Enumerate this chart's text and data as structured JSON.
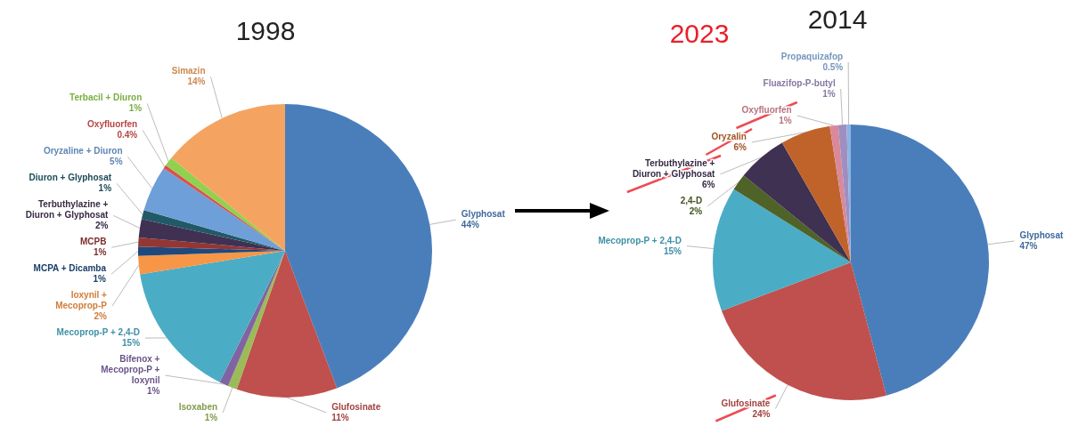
{
  "chart_data": [
    {
      "type": "pie",
      "title": "1998",
      "categories": [
        "Glyphosat",
        "Glufosinate",
        "Isoxaben",
        "Bifenox + Mecoprop-P + Ioxynil",
        "Mecoprop-P + 2,4-D",
        "Ioxynil + Mecoprop-P",
        "MCPA + Dicamba",
        "MCPB",
        "Terbuthylazine + Diuron + Glyphosat",
        "Diuron + Glyphosat",
        "Oryzaline + Diuron",
        "Oxyfluorfen",
        "Terbacil + Diuron",
        "Simazin"
      ],
      "values": [
        44,
        11,
        1,
        1,
        15,
        2,
        1,
        1,
        2,
        1,
        5,
        0.4,
        1,
        14
      ],
      "value_labels": [
        "44%",
        "11%",
        "1%",
        "1%",
        "15%",
        "2%",
        "1%",
        "1%",
        "2%",
        "1%",
        "5%",
        "0.4%",
        "1%",
        "14%"
      ],
      "colors": [
        "#4a7ebb",
        "#c0504d",
        "#9bbb59",
        "#8064a2",
        "#4bacc6",
        "#f79646",
        "#1f497d",
        "#943634",
        "#403152",
        "#215967",
        "#6f9fd8",
        "#d9534f",
        "#92d050",
        "#f4a460"
      ]
    },
    {
      "type": "pie",
      "title": "2014",
      "annotations": [
        "2023"
      ],
      "categories": [
        "Glyphosat",
        "Glufosinate",
        "Mecoprop-P + 2,4-D",
        "2,4-D",
        "Terbuthylazine + Diuron + Glyphosat",
        "Oryzalin",
        "Oxyfluorfen",
        "Fluazifop-P-butyl",
        "Propaquizafop"
      ],
      "values": [
        47,
        24,
        15,
        2,
        6,
        6,
        1,
        1,
        0.5
      ],
      "value_labels": [
        "47%",
        "24%",
        "15%",
        "2%",
        "6%",
        "6%",
        "1%",
        "1%",
        "0.5%"
      ],
      "colors": [
        "#4a7ebb",
        "#c0504d",
        "#4bacc6",
        "#4f6228",
        "#3f3151",
        "#c0632a",
        "#d9899a",
        "#9e8fc0",
        "#8db3e2"
      ]
    }
  ]
}
